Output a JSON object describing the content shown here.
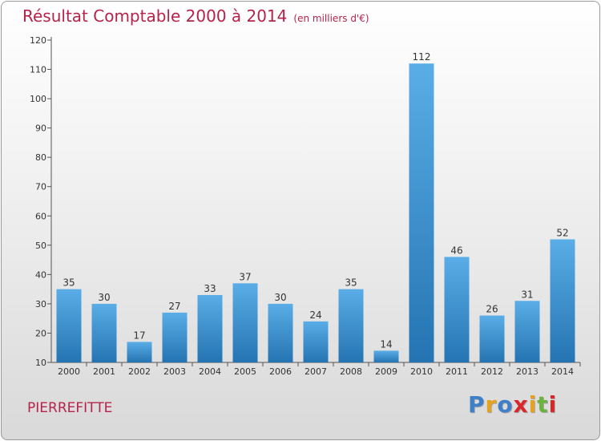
{
  "header": {
    "title": "Résultat Comptable 2000 à 2014",
    "unit": "(en milliers d'€)"
  },
  "footer": {
    "city": "PIERREFITTE",
    "logo_letters": [
      "P",
      "r",
      "o",
      "x",
      "i",
      "t",
      "i"
    ],
    "logo_colors": [
      "#3f7fc8",
      "#e7a21d",
      "#3f7fc8",
      "#d8262b",
      "#e7a21d",
      "#6cb33e",
      "#d8262b"
    ]
  },
  "chart_data": {
    "type": "bar",
    "title": "Résultat Comptable 2000 à 2014",
    "xlabel": "",
    "ylabel": "",
    "categories": [
      "2000",
      "2001",
      "2002",
      "2003",
      "2004",
      "2005",
      "2006",
      "2007",
      "2008",
      "2009",
      "2010",
      "2011",
      "2012",
      "2013",
      "2014"
    ],
    "values": [
      35,
      30,
      17,
      27,
      33,
      37,
      30,
      24,
      35,
      14,
      112,
      46,
      26,
      31,
      52
    ],
    "ylim": [
      10,
      120
    ],
    "yticks": [
      10,
      20,
      30,
      40,
      50,
      60,
      70,
      80,
      90,
      100,
      110,
      120
    ],
    "grid": false,
    "bar_color_top": "#5aade6",
    "bar_color_bottom": "#2474b3",
    "axis_color": "#555555"
  }
}
